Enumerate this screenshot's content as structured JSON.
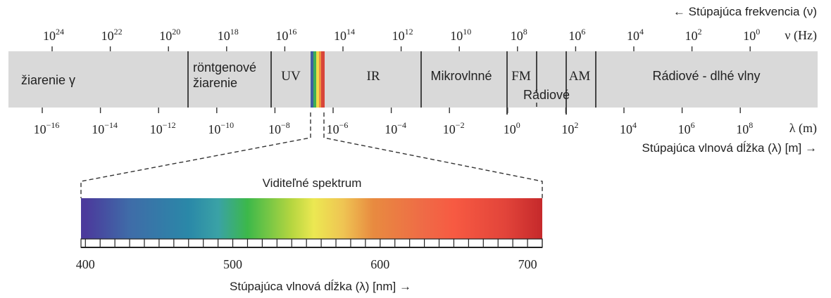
{
  "frequency_axis": {
    "direction_label": "← Stúpajúca frekvencia (ν)",
    "unit_label": "ν (Hz)",
    "base": "10",
    "exponents": [
      "24",
      "22",
      "20",
      "18",
      "16",
      "14",
      "12",
      "10",
      "8",
      "6",
      "4",
      "2",
      "0"
    ]
  },
  "wavelength_axis": {
    "direction_label": "Stúpajúca vlnová dĺžka (λ) [m] →",
    "unit_label": "λ (m)",
    "base": "10",
    "exponents": [
      "−16",
      "−14",
      "−12",
      "−10",
      "−8",
      "−6",
      "−4",
      "−2",
      "0",
      "2",
      "4",
      "6",
      "8"
    ]
  },
  "bands": {
    "gamma": "žiarenie γ",
    "xray_line1": "röntgenové",
    "xray_line2": "žiarenie",
    "uv": "UV",
    "ir": "IR",
    "microwave": "Mikrovlnné",
    "fm": "FM",
    "radio": "Rádiové",
    "am": "AM",
    "long_radio": "Rádiové - dlhé vlny"
  },
  "visible": {
    "title": "Viditeľné spektrum",
    "axis_label": "Stúpajúca vlnová dĺžka (λ) [nm] →",
    "tick_labels": [
      "400",
      "500",
      "600",
      "700"
    ],
    "range_nm": [
      397,
      710
    ],
    "minor_tick_step_nm": 10
  },
  "colors": {
    "band_fill": "#d9d9d9",
    "divider": "#333333",
    "spectrum_stops": [
      {
        "nm": 400,
        "color": "#4b3a9c"
      },
      {
        "nm": 430,
        "color": "#3f6ca8"
      },
      {
        "nm": 470,
        "color": "#2a88a8"
      },
      {
        "nm": 490,
        "color": "#3aa2a6"
      },
      {
        "nm": 510,
        "color": "#3cb84a"
      },
      {
        "nm": 540,
        "color": "#b6d640"
      },
      {
        "nm": 555,
        "color": "#ece852"
      },
      {
        "nm": 575,
        "color": "#efc453"
      },
      {
        "nm": 595,
        "color": "#e88b40"
      },
      {
        "nm": 630,
        "color": "#ef6a46"
      },
      {
        "nm": 650,
        "color": "#f75a42"
      },
      {
        "nm": 685,
        "color": "#e2443a"
      },
      {
        "nm": 710,
        "color": "#c5292b"
      }
    ]
  }
}
